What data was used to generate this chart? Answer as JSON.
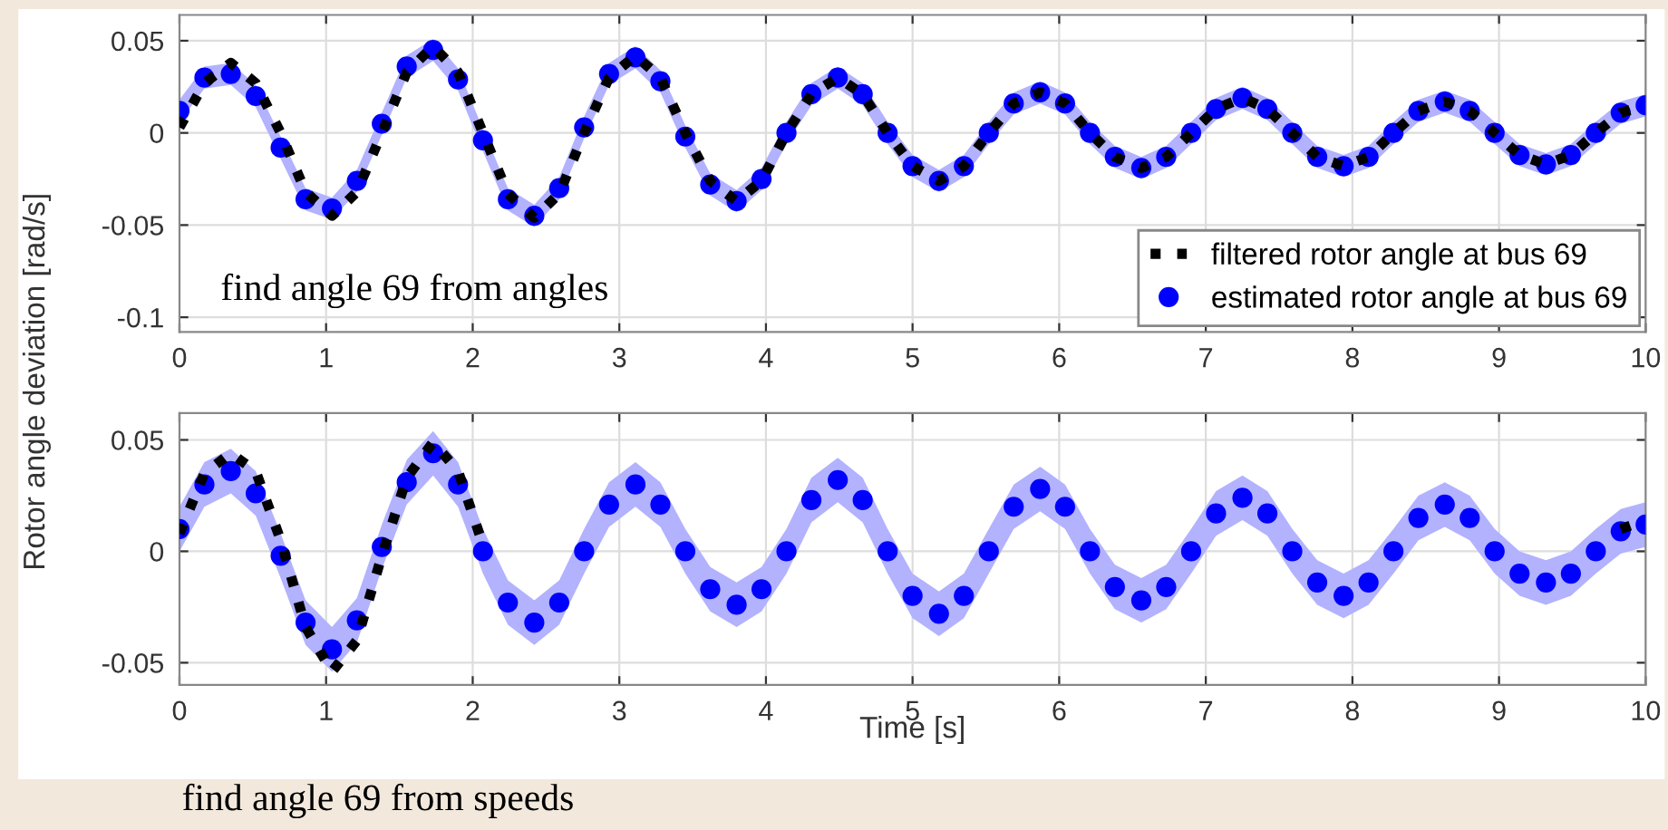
{
  "chart_data": [
    {
      "type": "line",
      "ylabel": "Rotor angle deviation [rad/s]",
      "annotations": [
        "find angle 69 from angles"
      ],
      "x": [
        0,
        0.17,
        0.35,
        0.52,
        0.69,
        0.86,
        1.04,
        1.21,
        1.38,
        1.55,
        1.73,
        1.9,
        2.07,
        2.24,
        2.42,
        2.59,
        2.76,
        2.93,
        3.11,
        3.28,
        3.45,
        3.62,
        3.8,
        3.97,
        4.14,
        4.31,
        4.49,
        4.66,
        4.83,
        5.0,
        5.18,
        5.35,
        5.52,
        5.69,
        5.87,
        6.04,
        6.21,
        6.38,
        6.56,
        6.73,
        6.9,
        7.07,
        7.25,
        7.42,
        7.59,
        7.76,
        7.94,
        8.11,
        8.28,
        8.45,
        8.63,
        8.8,
        8.97,
        9.14,
        9.32,
        9.49,
        9.66,
        9.83,
        10
      ],
      "series": [
        {
          "name": "filtered rotor angle at bus 69",
          "line_style": "dotted",
          "color": "#000000",
          "values": [
            0.003,
            0.027,
            0.038,
            0.027,
            0,
            -0.032,
            -0.045,
            -0.032,
            0,
            0.033,
            0.047,
            0.033,
            0,
            -0.033,
            -0.046,
            -0.033,
            0,
            0.03,
            0.042,
            0.03,
            0,
            -0.026,
            -0.037,
            -0.026,
            0,
            0.021,
            0.03,
            0.021,
            0,
            -0.018,
            -0.026,
            -0.018,
            0,
            0.016,
            0.022,
            0.016,
            0,
            -0.013,
            -0.019,
            -0.013,
            0,
            0.013,
            0.019,
            0.013,
            0,
            -0.013,
            -0.018,
            -0.013,
            0,
            0.012,
            0.017,
            0.012,
            0,
            -0.012,
            -0.017,
            -0.012,
            0,
            0.011,
            0.015
          ]
        },
        {
          "name": "estimated rotor angle at bus 69",
          "type": "scatter",
          "marker": "circle",
          "color": "#0000ff",
          "values": [
            0.012,
            0.03,
            0.032,
            0.02,
            -0.008,
            -0.036,
            -0.041,
            -0.026,
            0.005,
            0.036,
            0.045,
            0.029,
            -0.004,
            -0.036,
            -0.045,
            -0.03,
            0.003,
            0.032,
            0.041,
            0.028,
            -0.002,
            -0.028,
            -0.037,
            -0.025,
            0,
            0.021,
            0.03,
            0.021,
            0,
            -0.018,
            -0.026,
            -0.018,
            0,
            0.016,
            0.022,
            0.016,
            0,
            -0.013,
            -0.019,
            -0.013,
            0,
            0.013,
            0.019,
            0.013,
            0,
            -0.013,
            -0.018,
            -0.013,
            0,
            0.012,
            0.017,
            0.012,
            0,
            -0.012,
            -0.017,
            -0.012,
            0,
            0.011,
            0.015
          ],
          "lower": [
            0.006,
            0.024,
            0.026,
            0.014,
            -0.014,
            -0.042,
            -0.047,
            -0.032,
            -0.001,
            0.03,
            0.039,
            0.023,
            -0.01,
            -0.042,
            -0.051,
            -0.036,
            -0.003,
            0.026,
            0.035,
            0.022,
            -0.008,
            -0.034,
            -0.043,
            -0.031,
            -0.006,
            0.015,
            0.024,
            0.015,
            -0.006,
            -0.024,
            -0.032,
            -0.024,
            -0.006,
            0.01,
            0.016,
            0.01,
            -0.006,
            -0.019,
            -0.025,
            -0.019,
            -0.006,
            0.007,
            0.013,
            0.007,
            -0.006,
            -0.019,
            -0.024,
            -0.019,
            -0.006,
            0.006,
            0.011,
            0.006,
            -0.006,
            -0.018,
            -0.023,
            -0.018,
            -0.006,
            0.005,
            0.009
          ],
          "upper": [
            0.018,
            0.036,
            0.038,
            0.026,
            -0.002,
            -0.03,
            -0.035,
            -0.02,
            0.011,
            0.042,
            0.051,
            0.035,
            0.002,
            -0.03,
            -0.039,
            -0.024,
            0.009,
            0.038,
            0.047,
            0.034,
            0.004,
            -0.022,
            -0.031,
            -0.019,
            0.006,
            0.027,
            0.036,
            0.027,
            0.006,
            -0.012,
            -0.02,
            -0.012,
            0.006,
            0.022,
            0.028,
            0.022,
            0.006,
            -0.007,
            -0.013,
            -0.007,
            0.006,
            0.019,
            0.025,
            0.019,
            0.006,
            -0.007,
            -0.012,
            -0.007,
            0.006,
            0.018,
            0.023,
            0.018,
            0.006,
            -0.006,
            -0.011,
            -0.006,
            0.006,
            0.017,
            0.021
          ]
        }
      ],
      "xlim": [
        0,
        10
      ],
      "xticks": [
        0,
        1,
        2,
        3,
        4,
        5,
        6,
        7,
        8,
        9,
        10
      ],
      "ylim": [
        -0.108,
        0.064
      ],
      "yticks": [
        -0.1,
        -0.05,
        0,
        0.05
      ],
      "grid": true,
      "legend": "bottom right"
    },
    {
      "type": "line",
      "xlabel": "Time [s]",
      "annotations": [
        "find angle 69 from speeds"
      ],
      "x": [
        0,
        0.17,
        0.35,
        0.52,
        0.69,
        0.86,
        1.04,
        1.21,
        1.38,
        1.55,
        1.73,
        1.9,
        2.07,
        2.24,
        2.42,
        2.59,
        2.76,
        2.93,
        3.11,
        3.28,
        3.45,
        3.62,
        3.8,
        3.97,
        4.14,
        4.31,
        4.49,
        4.66,
        4.83,
        5.0,
        5.18,
        5.35,
        5.52,
        5.69,
        5.87,
        6.04,
        6.21,
        6.38,
        6.56,
        6.73,
        6.9,
        7.07,
        7.25,
        7.42,
        7.59,
        7.76,
        7.94,
        8.11,
        8.28,
        8.45,
        8.63,
        8.8,
        8.97,
        9.14,
        9.32,
        9.49,
        9.66,
        9.83,
        10
      ],
      "series": [
        {
          "line_style": "dotted",
          "color": "#000000",
          "values": [
            0.008,
            0.035,
            0.044,
            0.036,
            0.005,
            -0.034,
            -0.054,
            -0.04,
            -0.002,
            0.033,
            0.049,
            0.036,
            0.003,
            null,
            null,
            null,
            null,
            null,
            null,
            null,
            null,
            null,
            null,
            null,
            null,
            null,
            null,
            null,
            null,
            null,
            null,
            null,
            null,
            null,
            null,
            null,
            null,
            null,
            null,
            null,
            null,
            null,
            null,
            null,
            null,
            null,
            null,
            null,
            null,
            null,
            null,
            null,
            null,
            null,
            null,
            null,
            null,
            0.01,
            0.014
          ]
        },
        {
          "type": "scatter",
          "marker": "circle",
          "color": "#0000ff",
          "values": [
            0.01,
            0.03,
            0.036,
            0.026,
            -0.002,
            -0.032,
            -0.044,
            -0.031,
            0.002,
            0.031,
            0.044,
            0.03,
            0,
            -0.023,
            -0.032,
            -0.023,
            0,
            0.021,
            0.03,
            0.021,
            0,
            -0.017,
            -0.024,
            -0.017,
            0,
            0.023,
            0.032,
            0.023,
            0,
            -0.02,
            -0.028,
            -0.02,
            0,
            0.02,
            0.028,
            0.02,
            0,
            -0.016,
            -0.022,
            -0.016,
            0,
            0.017,
            0.024,
            0.017,
            0,
            -0.014,
            -0.02,
            -0.014,
            0,
            0.015,
            0.021,
            0.015,
            0,
            -0.01,
            -0.014,
            -0.01,
            0,
            0.009,
            0.012
          ],
          "lower": [
            0,
            0.02,
            0.026,
            0.016,
            -0.012,
            -0.042,
            -0.054,
            -0.041,
            -0.008,
            0.021,
            0.034,
            0.02,
            -0.01,
            -0.033,
            -0.042,
            -0.033,
            -0.01,
            0.011,
            0.02,
            0.011,
            -0.01,
            -0.027,
            -0.034,
            -0.027,
            -0.01,
            0.013,
            0.022,
            0.013,
            -0.01,
            -0.03,
            -0.038,
            -0.03,
            -0.01,
            0.01,
            0.018,
            0.01,
            -0.01,
            -0.026,
            -0.032,
            -0.026,
            -0.01,
            0.007,
            0.014,
            0.007,
            -0.01,
            -0.024,
            -0.03,
            -0.024,
            -0.01,
            0.005,
            0.011,
            0.005,
            -0.01,
            -0.02,
            -0.024,
            -0.02,
            -0.01,
            -0.001,
            0.002
          ],
          "upper": [
            0.02,
            0.04,
            0.046,
            0.036,
            0.008,
            -0.022,
            -0.034,
            -0.021,
            0.012,
            0.041,
            0.054,
            0.04,
            0.01,
            -0.013,
            -0.022,
            -0.013,
            0.01,
            0.031,
            0.04,
            0.031,
            0.01,
            -0.007,
            -0.014,
            -0.007,
            0.01,
            0.033,
            0.042,
            0.033,
            0.01,
            -0.01,
            -0.018,
            -0.01,
            0.01,
            0.03,
            0.038,
            0.03,
            0.01,
            -0.006,
            -0.012,
            -0.006,
            0.01,
            0.027,
            0.034,
            0.027,
            0.01,
            -0.004,
            -0.01,
            -0.004,
            0.01,
            0.025,
            0.031,
            0.025,
            0.01,
            0,
            -0.004,
            0,
            0.01,
            0.019,
            0.022
          ]
        }
      ],
      "xlim": [
        0,
        10
      ],
      "xticks": [
        0,
        1,
        2,
        3,
        4,
        5,
        6,
        7,
        8,
        9,
        10
      ],
      "ylim": [
        -0.06,
        0.062
      ],
      "yticks": [
        -0.05,
        0,
        0.05
      ],
      "grid": true
    }
  ]
}
